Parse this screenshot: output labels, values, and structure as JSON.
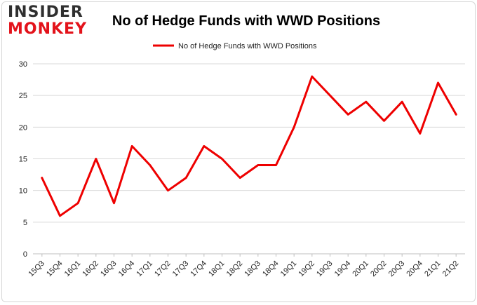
{
  "logo": {
    "top": "INSIDER",
    "bottom": "MONKEY"
  },
  "chart_data": {
    "type": "line",
    "title": "No of Hedge Funds with WWD Positions",
    "xlabel": "",
    "ylabel": "",
    "categories": [
      "15Q3",
      "15Q4",
      "16Q1",
      "16Q2",
      "16Q3",
      "16Q4",
      "17Q1",
      "17Q2",
      "17Q3",
      "17Q4",
      "18Q1",
      "18Q2",
      "18Q3",
      "18Q4",
      "19Q1",
      "19Q2",
      "19Q3",
      "19Q4",
      "20Q1",
      "20Q2",
      "20Q3",
      "20Q4",
      "21Q1",
      "21Q2"
    ],
    "series": [
      {
        "name": "No of Hedge Funds with WWD Positions",
        "values": [
          12,
          6,
          8,
          15,
          8,
          17,
          14,
          10,
          12,
          17,
          15,
          12,
          14,
          14,
          20,
          28,
          25,
          22,
          24,
          21,
          24,
          19,
          27,
          22
        ],
        "color": "#ee0000"
      }
    ],
    "ylim": [
      0,
      30
    ],
    "yticks": [
      0,
      5,
      10,
      15,
      20,
      25,
      30
    ],
    "grid": true,
    "legend": "top-center"
  }
}
